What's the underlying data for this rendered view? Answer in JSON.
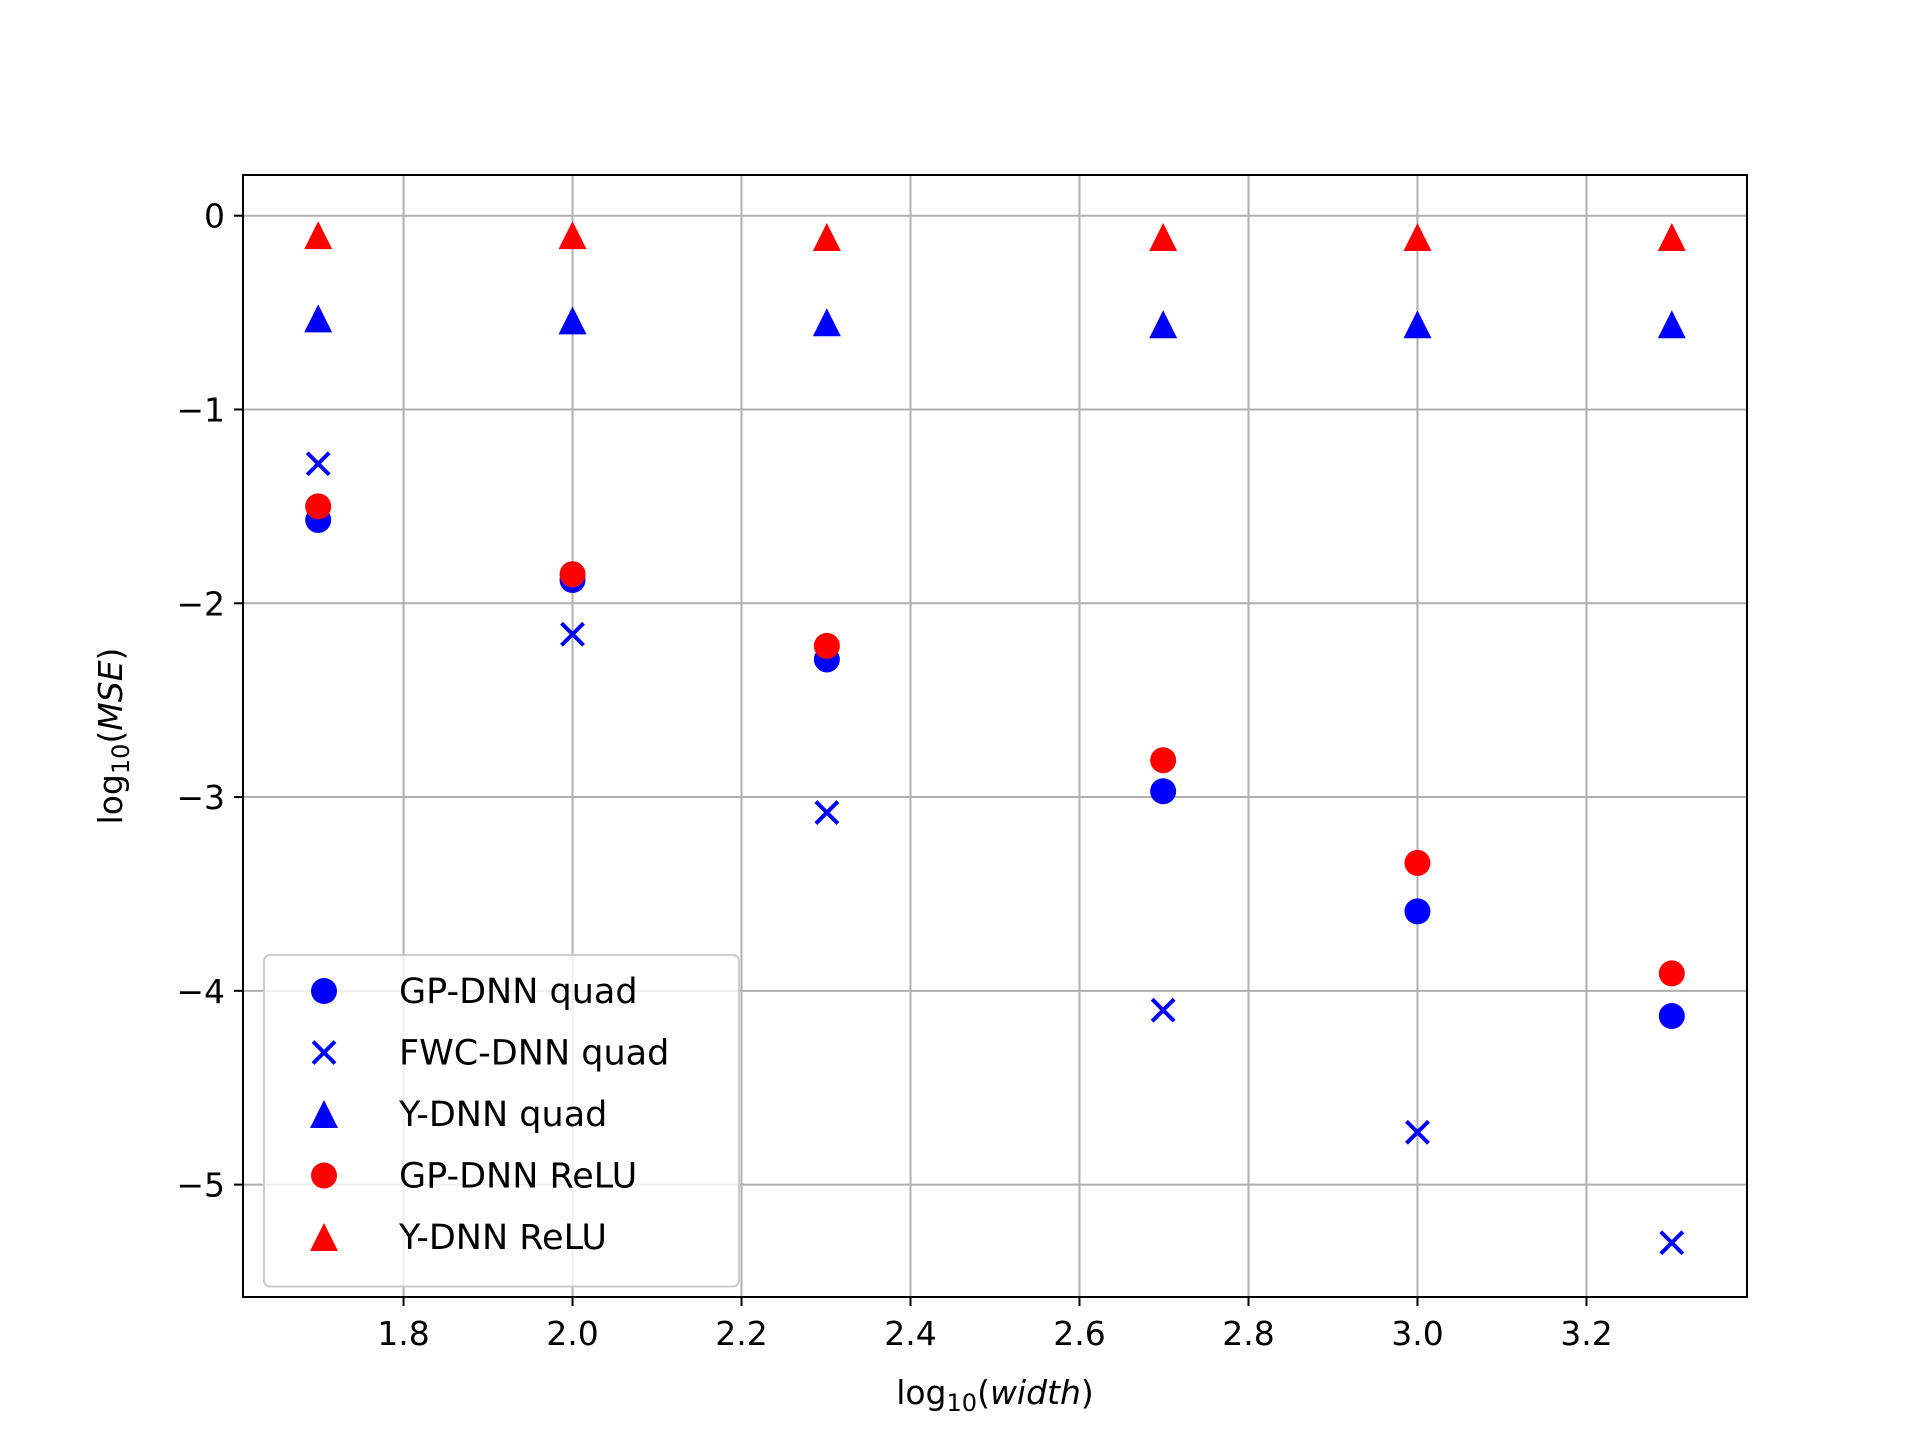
{
  "chart_data": {
    "type": "scatter",
    "title": "",
    "xlabel": {
      "base": "log",
      "sub": "10",
      "arg": "width"
    },
    "ylabel": {
      "base": "log",
      "sub": "10",
      "arg": "MSE"
    },
    "xlim": [
      1.61,
      3.39
    ],
    "ylim": [
      -5.58,
      0.21
    ],
    "xticks": [
      1.8,
      2.0,
      2.2,
      2.4,
      2.6,
      2.8,
      3.0,
      3.2
    ],
    "xtick_labels": [
      "1.8",
      "2.0",
      "2.2",
      "2.4",
      "2.6",
      "2.8",
      "3.0",
      "3.2"
    ],
    "yticks": [
      0,
      -1,
      -2,
      -3,
      -4,
      -5
    ],
    "ytick_labels": [
      "0",
      "−1",
      "−2",
      "−3",
      "−4",
      "−5"
    ],
    "grid": true,
    "legend_position": "lower-left",
    "x": [
      1.699,
      2.0,
      2.301,
      2.699,
      3.0,
      3.301
    ],
    "series": [
      {
        "name": "GP-DNN quad",
        "marker": "circle",
        "color": "#0000ff",
        "values": [
          -1.57,
          -1.88,
          -2.29,
          -2.97,
          -3.59,
          -4.13
        ]
      },
      {
        "name": "FWC-DNN quad",
        "marker": "x",
        "color": "#0000ff",
        "values": [
          -1.28,
          -2.16,
          -3.08,
          -4.1,
          -4.73,
          -5.3
        ]
      },
      {
        "name": "Y-DNN quad",
        "marker": "triangle",
        "color": "#0000ff",
        "values": [
          -0.53,
          -0.54,
          -0.55,
          -0.56,
          -0.56,
          -0.56
        ]
      },
      {
        "name": "GP-DNN ReLU",
        "marker": "circle",
        "color": "#ff0000",
        "values": [
          -1.5,
          -1.85,
          -2.22,
          -2.81,
          -3.34,
          -3.91
        ]
      },
      {
        "name": "Y-DNN ReLU",
        "marker": "triangle",
        "color": "#ff0000",
        "values": [
          -0.1,
          -0.1,
          -0.11,
          -0.11,
          -0.11,
          -0.11
        ]
      }
    ]
  }
}
